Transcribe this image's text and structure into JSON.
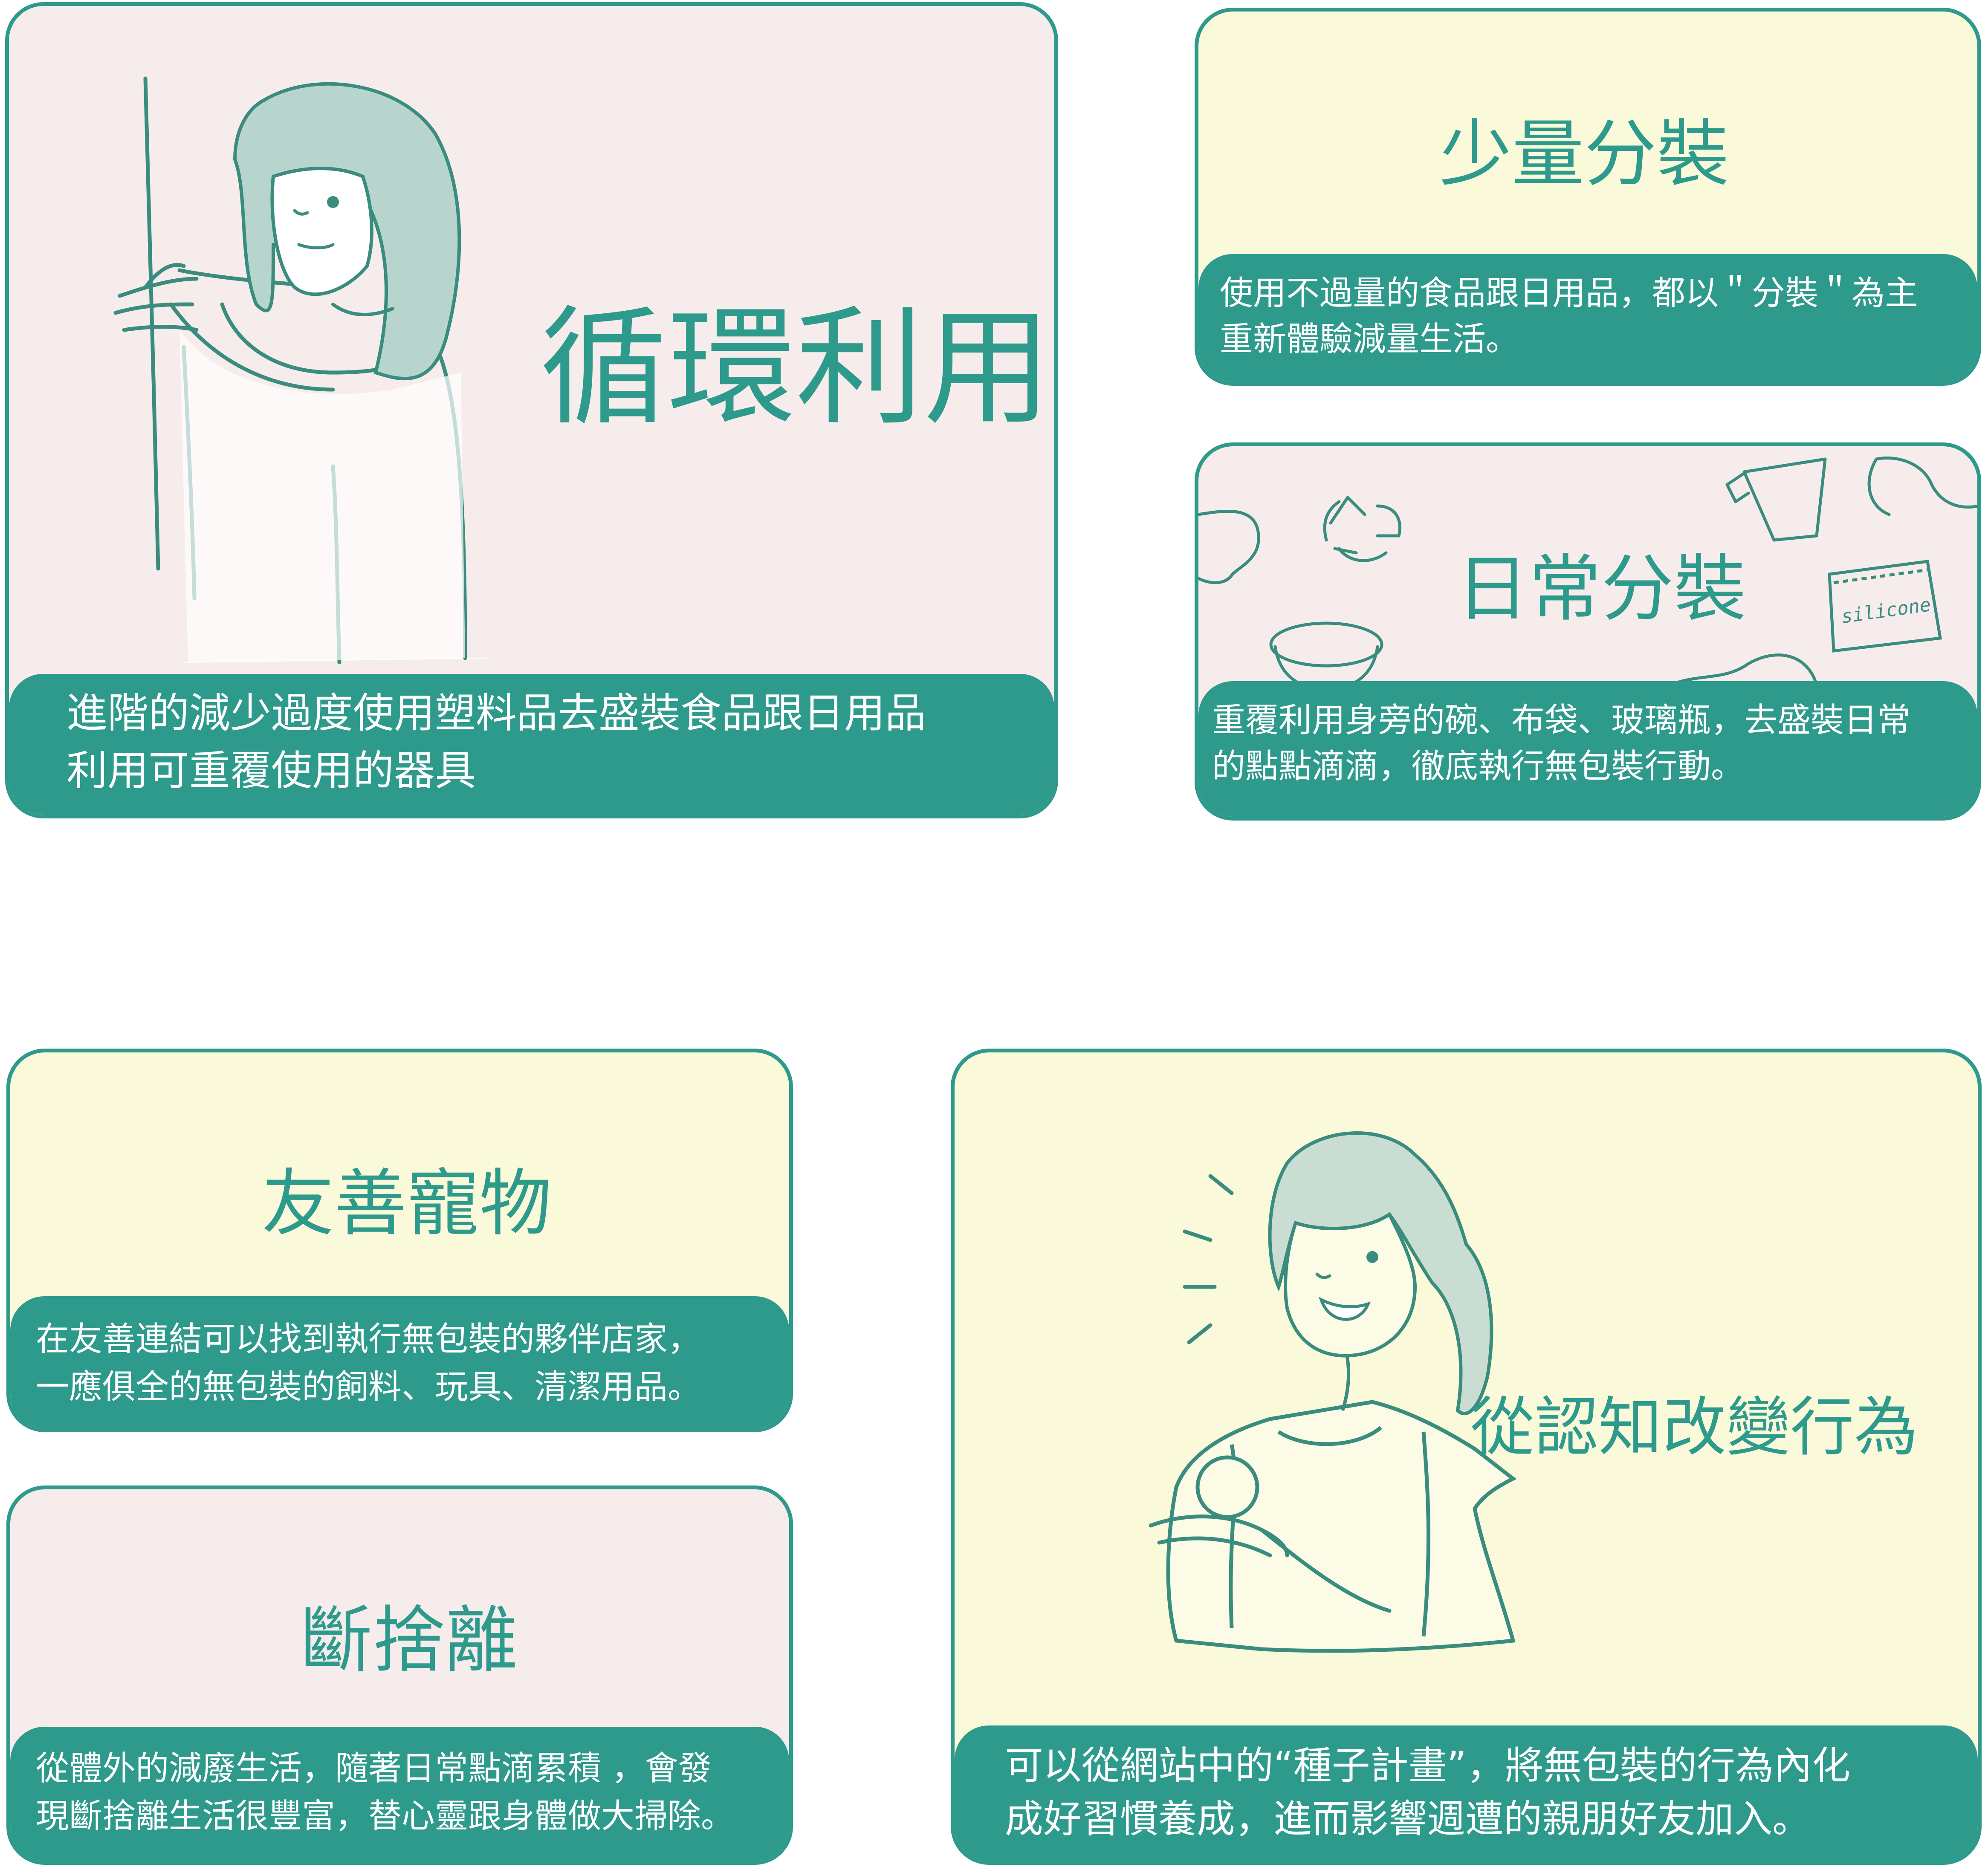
{
  "cards": {
    "recycle": {
      "title": "循環利用",
      "desc_line1": "進階的減少過度使用塑料品去盛裝食品跟日用品",
      "desc_line2": "利用可重覆使用的器具"
    },
    "small": {
      "title": "少量分裝",
      "desc_line1": "使用不過量的食品跟日用品，都以＂分裝＂為主",
      "desc_line2": "重新體驗減量生活。"
    },
    "daily": {
      "title": "日常分裝",
      "desc_line1": "重覆利用身旁的碗、布袋、玻璃瓶，去盛裝日常",
      "desc_line2": "的點點滴滴，徹底執行無包裝行動。",
      "bag_label": "silicone"
    },
    "pet": {
      "title": "友善寵物",
      "desc_line1": "在友善連結可以找到執行無包裝的夥伴店家，",
      "desc_line2": "一應俱全的無包裝的飼料、玩具、清潔用品。"
    },
    "declutter": {
      "title": "斷捨離",
      "desc_line1": "從體外的減廢生活，隨著日常點滴累積 ，會發",
      "desc_line2": "現斷捨離生活很豐富，替心靈跟身體做大掃除。"
    },
    "behavior": {
      "title": "從認知改變行為",
      "desc_line1": "可以從網站中的“種子計畫”，將無包裝的行為內化",
      "desc_line2": "成好習慣養成，進而影響週遭的親朋好友加入。"
    }
  },
  "colors": {
    "teal": "#2e9a8c",
    "pink_bg": "#f7ecec",
    "cream_bg": "#fafadb",
    "hair": "#b7d5cc",
    "line": "#3a8c7e"
  },
  "icons": [
    "woman-illustration",
    "recycle-icon",
    "cup-icon",
    "bowl-icon",
    "silicone-bag-icon",
    "woman-laughing-illustration"
  ]
}
